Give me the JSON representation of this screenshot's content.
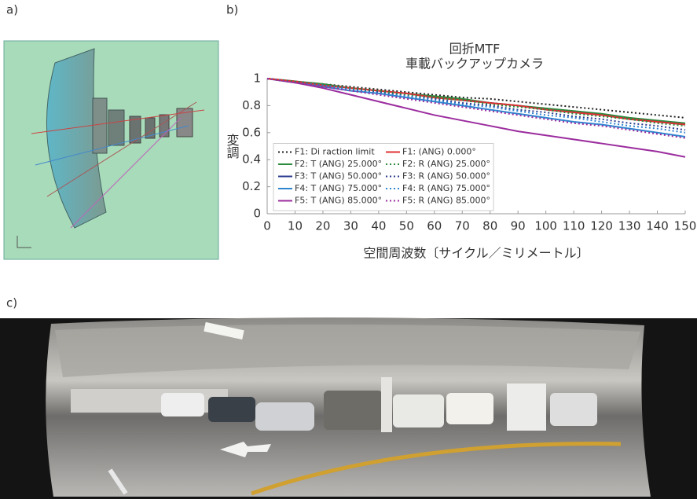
{
  "labels": [
    "a)",
    "b)",
    "c)"
  ],
  "chart_data": {
    "type": "line",
    "title": "回折MTF",
    "subtitle": "車載バックアップカメラ",
    "x_label": "空間周波数〔サイクル／ミリメートル〕",
    "y_label": "変調",
    "x": [
      0,
      10,
      20,
      30,
      40,
      50,
      60,
      70,
      80,
      90,
      100,
      110,
      120,
      130,
      140,
      150
    ],
    "xlim": [
      0,
      150
    ],
    "xticks": [
      0,
      10,
      20,
      30,
      40,
      50,
      60,
      70,
      80,
      90,
      100,
      110,
      120,
      130,
      140,
      150
    ],
    "ylim": [
      0,
      1
    ],
    "yticks": [
      0,
      0.2,
      0.4,
      0.6,
      0.8,
      1
    ],
    "grid": false,
    "legend": "lower left",
    "series": [
      {
        "name": "F1: Di   raction limit",
        "color": "#222222",
        "style": "dotted",
        "values": [
          1,
          0.98,
          0.96,
          0.94,
          0.92,
          0.9,
          0.88,
          0.86,
          0.85,
          0.83,
          0.81,
          0.79,
          0.77,
          0.75,
          0.73,
          0.71
        ]
      },
      {
        "name": "F2: T (ANG) 25.000°",
        "color": "#2e8b3e",
        "style": "solid",
        "values": [
          1,
          0.98,
          0.96,
          0.93,
          0.91,
          0.89,
          0.87,
          0.85,
          0.82,
          0.8,
          0.78,
          0.76,
          0.74,
          0.71,
          0.69,
          0.67
        ]
      },
      {
        "name": "F3: T (ANG) 50.000°",
        "color": "#2b3c8f",
        "style": "solid",
        "values": [
          1,
          0.98,
          0.95,
          0.93,
          0.91,
          0.89,
          0.86,
          0.84,
          0.82,
          0.8,
          0.77,
          0.75,
          0.73,
          0.7,
          0.68,
          0.66
        ]
      },
      {
        "name": "F4: T (ANG) 75.000°",
        "color": "#2f84d0",
        "style": "solid",
        "values": [
          1,
          0.97,
          0.94,
          0.91,
          0.89,
          0.86,
          0.83,
          0.8,
          0.77,
          0.74,
          0.71,
          0.68,
          0.66,
          0.63,
          0.6,
          0.57
        ]
      },
      {
        "name": "F5: T (ANG) 85.000°",
        "color": "#9b2c9e",
        "style": "solid",
        "values": [
          1,
          0.97,
          0.93,
          0.88,
          0.83,
          0.78,
          0.73,
          0.69,
          0.65,
          0.61,
          0.58,
          0.55,
          0.52,
          0.49,
          0.46,
          0.42
        ]
      },
      {
        "name": "F1: (ANG) 0.000°",
        "color": "#e03030",
        "style": "solid",
        "values": [
          1,
          0.98,
          0.95,
          0.93,
          0.91,
          0.89,
          0.86,
          0.84,
          0.82,
          0.8,
          0.77,
          0.75,
          0.73,
          0.7,
          0.68,
          0.66
        ]
      },
      {
        "name": "F2: R (ANG) 25.000°",
        "color": "#2e8b3e",
        "style": "dotted",
        "values": [
          1,
          0.98,
          0.95,
          0.93,
          0.91,
          0.88,
          0.86,
          0.84,
          0.81,
          0.79,
          0.77,
          0.74,
          0.72,
          0.7,
          0.67,
          0.65
        ]
      },
      {
        "name": "F3: R (ANG) 50.000°",
        "color": "#2b3c8f",
        "style": "dotted",
        "values": [
          1,
          0.97,
          0.95,
          0.92,
          0.9,
          0.87,
          0.85,
          0.82,
          0.8,
          0.77,
          0.75,
          0.72,
          0.7,
          0.67,
          0.65,
          0.62
        ]
      },
      {
        "name": "F4: R (ANG) 75.000°",
        "color": "#2f84d0",
        "style": "dotted",
        "values": [
          1,
          0.97,
          0.95,
          0.92,
          0.89,
          0.87,
          0.84,
          0.81,
          0.79,
          0.76,
          0.73,
          0.71,
          0.68,
          0.65,
          0.63,
          0.6
        ]
      },
      {
        "name": "F5: R (ANG) 85.000°",
        "color": "#9b2c9e",
        "style": "dotted",
        "values": [
          1,
          0.97,
          0.94,
          0.91,
          0.88,
          0.85,
          0.82,
          0.79,
          0.76,
          0.73,
          0.7,
          0.67,
          0.65,
          0.62,
          0.59,
          0.56
        ]
      }
    ]
  }
}
